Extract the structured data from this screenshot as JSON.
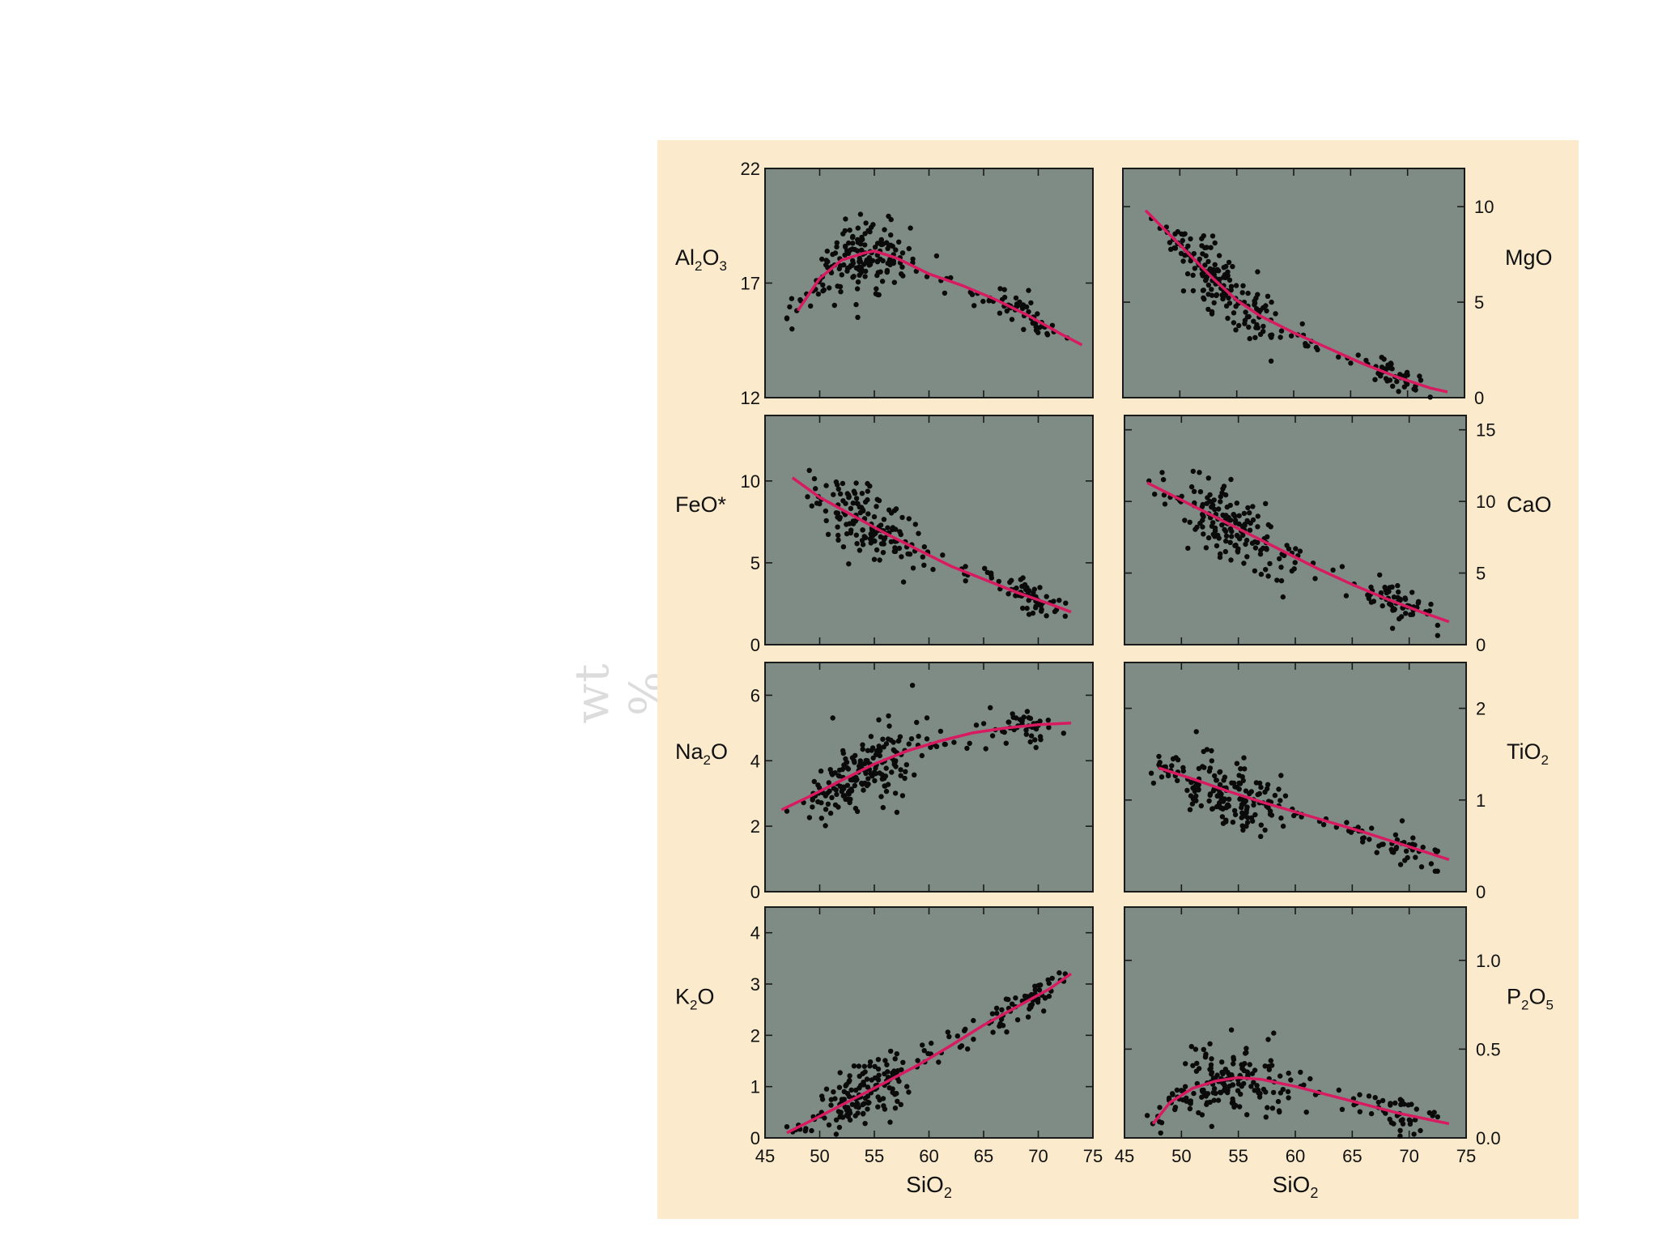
{
  "side_label": "wt %",
  "colors": {
    "panel_bg": "#fbebcc",
    "plot_bg": "#7f8c86",
    "trend": "#d81b60",
    "points": "#0a0a0a"
  },
  "chart_data": [
    {
      "type": "scatter",
      "ylabel": "Al2O3",
      "ylabel_main": "Al",
      "ylabel_subs": [
        "2",
        "3"
      ],
      "xlabel": "",
      "xlim": [
        45,
        75
      ],
      "ylim": [
        12,
        22
      ],
      "yticks": [
        12,
        17,
        22
      ],
      "xticks": [
        45,
        50,
        55,
        60,
        65,
        70,
        75
      ],
      "x_tick_labels_shown": false,
      "y_axis_side": "left",
      "trend": [
        [
          48,
          15.8
        ],
        [
          50,
          17.2
        ],
        [
          52,
          18.0
        ],
        [
          54,
          18.3
        ],
        [
          55,
          18.4
        ],
        [
          57,
          18.1
        ],
        [
          60,
          17.4
        ],
        [
          63,
          16.9
        ],
        [
          66,
          16.3
        ],
        [
          69,
          15.6
        ],
        [
          72,
          14.8
        ],
        [
          74,
          14.3
        ]
      ],
      "scatter": {
        "x_range": [
          47,
          73
        ],
        "seed": 11,
        "n": 230
      }
    },
    {
      "type": "scatter",
      "ylabel": "MgO",
      "ylabel_main": "MgO",
      "ylabel_subs": [],
      "xlabel": "",
      "xlim": [
        45,
        75
      ],
      "ylim": [
        0,
        12
      ],
      "yticks": [
        0,
        5,
        10
      ],
      "xticks": [
        45,
        50,
        55,
        60,
        65,
        70,
        75
      ],
      "x_tick_labels_shown": false,
      "y_axis_side": "right",
      "trend": [
        [
          47,
          9.8
        ],
        [
          49,
          8.6
        ],
        [
          51,
          7.4
        ],
        [
          53,
          6.2
        ],
        [
          55,
          5.1
        ],
        [
          57,
          4.3
        ],
        [
          60,
          3.4
        ],
        [
          63,
          2.6
        ],
        [
          66,
          1.8
        ],
        [
          69,
          1.1
        ],
        [
          72,
          0.5
        ],
        [
          73.5,
          0.3
        ]
      ],
      "scatter": {
        "x_range": [
          47.5,
          72.5
        ],
        "seed": 23,
        "n": 230
      }
    },
    {
      "type": "scatter",
      "ylabel": "FeO*",
      "ylabel_main": "FeO*",
      "ylabel_subs": [],
      "xlabel": "",
      "xlim": [
        45,
        75
      ],
      "ylim": [
        0,
        14
      ],
      "yticks": [
        0,
        5,
        10
      ],
      "xticks": [
        45,
        50,
        55,
        60,
        65,
        70,
        75
      ],
      "x_tick_labels_shown": false,
      "y_axis_side": "left",
      "trend": [
        [
          47.5,
          10.2
        ],
        [
          50,
          9.0
        ],
        [
          53,
          7.9
        ],
        [
          56,
          6.8
        ],
        [
          59,
          5.8
        ],
        [
          62,
          4.8
        ],
        [
          65,
          4.0
        ],
        [
          68,
          3.2
        ],
        [
          71,
          2.5
        ],
        [
          73,
          2.0
        ]
      ],
      "scatter": {
        "x_range": [
          47,
          72.5
        ],
        "seed": 37,
        "n": 220
      }
    },
    {
      "type": "scatter",
      "ylabel": "CaO",
      "ylabel_main": "CaO",
      "ylabel_subs": [],
      "xlabel": "",
      "xlim": [
        45,
        75
      ],
      "ylim": [
        0,
        16
      ],
      "yticks": [
        0,
        5,
        10,
        15
      ],
      "xticks": [
        45,
        50,
        55,
        60,
        65,
        70,
        75
      ],
      "x_tick_labels_shown": false,
      "y_axis_side": "right",
      "trend": [
        [
          47,
          11.3
        ],
        [
          50,
          10.1
        ],
        [
          53,
          8.9
        ],
        [
          56,
          7.7
        ],
        [
          59,
          6.5
        ],
        [
          62,
          5.3
        ],
        [
          65,
          4.2
        ],
        [
          68,
          3.2
        ],
        [
          71,
          2.3
        ],
        [
          73.5,
          1.6
        ]
      ],
      "scatter": {
        "x_range": [
          47,
          72.5
        ],
        "seed": 41,
        "n": 230
      }
    },
    {
      "type": "scatter",
      "ylabel": "Na2O",
      "ylabel_main": "Na",
      "ylabel_subs": [
        "2"
      ],
      "ylabel_tail": "O",
      "xlabel": "",
      "xlim": [
        45,
        75
      ],
      "ylim": [
        0,
        7
      ],
      "yticks": [
        0,
        2,
        4,
        6
      ],
      "xticks": [
        45,
        50,
        55,
        60,
        65,
        70,
        75
      ],
      "x_tick_labels_shown": false,
      "y_axis_side": "left",
      "trend": [
        [
          46.5,
          2.5
        ],
        [
          49,
          2.9
        ],
        [
          52,
          3.4
        ],
        [
          55,
          3.9
        ],
        [
          58,
          4.3
        ],
        [
          61,
          4.6
        ],
        [
          64,
          4.85
        ],
        [
          67,
          5.0
        ],
        [
          70,
          5.1
        ],
        [
          73,
          5.15
        ]
      ],
      "scatter": {
        "x_range": [
          47,
          72.5
        ],
        "seed": 53,
        "n": 240
      }
    },
    {
      "type": "scatter",
      "ylabel": "TiO2",
      "ylabel_main": "TiO",
      "ylabel_subs": [
        "2"
      ],
      "xlabel": "",
      "xlim": [
        45,
        75
      ],
      "ylim": [
        0,
        2.5
      ],
      "yticks": [
        0,
        1,
        2
      ],
      "xticks": [
        45,
        50,
        55,
        60,
        65,
        70,
        75
      ],
      "x_tick_labels_shown": false,
      "y_axis_side": "right",
      "trend": [
        [
          48,
          1.35
        ],
        [
          51,
          1.23
        ],
        [
          54,
          1.1
        ],
        [
          57,
          0.98
        ],
        [
          60,
          0.87
        ],
        [
          63,
          0.76
        ],
        [
          66,
          0.65
        ],
        [
          69,
          0.53
        ],
        [
          72,
          0.41
        ],
        [
          73.5,
          0.35
        ]
      ],
      "scatter": {
        "x_range": [
          47,
          72.5
        ],
        "seed": 67,
        "n": 230
      }
    },
    {
      "type": "scatter",
      "ylabel": "K2O",
      "ylabel_main": "K",
      "ylabel_subs": [
        "2"
      ],
      "ylabel_tail": "O",
      "xlabel": "SiO2",
      "xlim": [
        45,
        75
      ],
      "ylim": [
        0,
        4.5
      ],
      "yticks": [
        0,
        1,
        2,
        3,
        4
      ],
      "xticks": [
        45,
        50,
        55,
        60,
        65,
        70,
        75
      ],
      "x_tick_labels_shown": true,
      "y_axis_side": "left",
      "trend": [
        [
          47,
          0.1
        ],
        [
          50,
          0.42
        ],
        [
          53,
          0.75
        ],
        [
          56,
          1.08
        ],
        [
          59,
          1.42
        ],
        [
          62,
          1.8
        ],
        [
          65,
          2.2
        ],
        [
          68,
          2.55
        ],
        [
          71,
          2.9
        ],
        [
          73,
          3.2
        ]
      ],
      "scatter": {
        "x_range": [
          47,
          72.5
        ],
        "seed": 79,
        "n": 230
      }
    },
    {
      "type": "scatter",
      "ylabel": "P2O5",
      "ylabel_main": "P",
      "ylabel_subs": [
        "2",
        "5"
      ],
      "xlabel": "SiO2",
      "xlim": [
        45,
        75
      ],
      "ylim": [
        0,
        1.3
      ],
      "yticks": [
        0.0,
        0.5,
        1.0
      ],
      "ytick_labels": [
        "0.0",
        "0.5",
        "1.0"
      ],
      "xticks": [
        45,
        50,
        55,
        60,
        65,
        70,
        75
      ],
      "x_tick_labels_shown": true,
      "y_axis_side": "right",
      "trend": [
        [
          47.5,
          0.08
        ],
        [
          49,
          0.2
        ],
        [
          51,
          0.28
        ],
        [
          53,
          0.32
        ],
        [
          55,
          0.34
        ],
        [
          57,
          0.33
        ],
        [
          60,
          0.29
        ],
        [
          63,
          0.24
        ],
        [
          66,
          0.19
        ],
        [
          69,
          0.14
        ],
        [
          72,
          0.1
        ],
        [
          73.5,
          0.08
        ]
      ],
      "scatter": {
        "x_range": [
          47,
          72.5
        ],
        "seed": 91,
        "n": 220
      }
    }
  ],
  "x_axis_title": {
    "main": "SiO",
    "sub": "2"
  }
}
